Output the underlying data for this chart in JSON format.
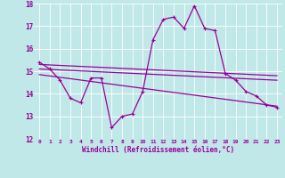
{
  "background_color": "#c0e8e8",
  "grid_color": "#aad4d4",
  "line_color": "#990099",
  "xlabel": "Windchill (Refroidissement éolien,°C)",
  "xlim": [
    -0.5,
    23.5
  ],
  "ylim": [
    12,
    18
  ],
  "yticks": [
    12,
    13,
    14,
    15,
    16,
    17,
    18
  ],
  "xticks": [
    0,
    1,
    2,
    3,
    4,
    5,
    6,
    7,
    8,
    9,
    10,
    11,
    12,
    13,
    14,
    15,
    16,
    17,
    18,
    19,
    20,
    21,
    22,
    23
  ],
  "main_line": {
    "x": [
      0,
      1,
      2,
      3,
      4,
      5,
      6,
      7,
      8,
      9,
      10,
      11,
      12,
      13,
      14,
      15,
      16,
      17,
      18,
      19,
      20,
      21,
      22,
      23
    ],
    "y": [
      15.4,
      15.1,
      14.6,
      13.8,
      13.6,
      14.7,
      14.7,
      12.5,
      13.0,
      13.1,
      14.1,
      16.4,
      17.3,
      17.4,
      16.9,
      17.9,
      16.9,
      16.8,
      14.9,
      14.6,
      14.1,
      13.9,
      13.5,
      13.4
    ]
  },
  "trend_lines": [
    {
      "x": [
        0,
        23
      ],
      "y": [
        15.3,
        14.8
      ]
    },
    {
      "x": [
        0,
        23
      ],
      "y": [
        15.1,
        14.6
      ]
    },
    {
      "x": [
        0,
        23
      ],
      "y": [
        14.85,
        13.45
      ]
    }
  ]
}
